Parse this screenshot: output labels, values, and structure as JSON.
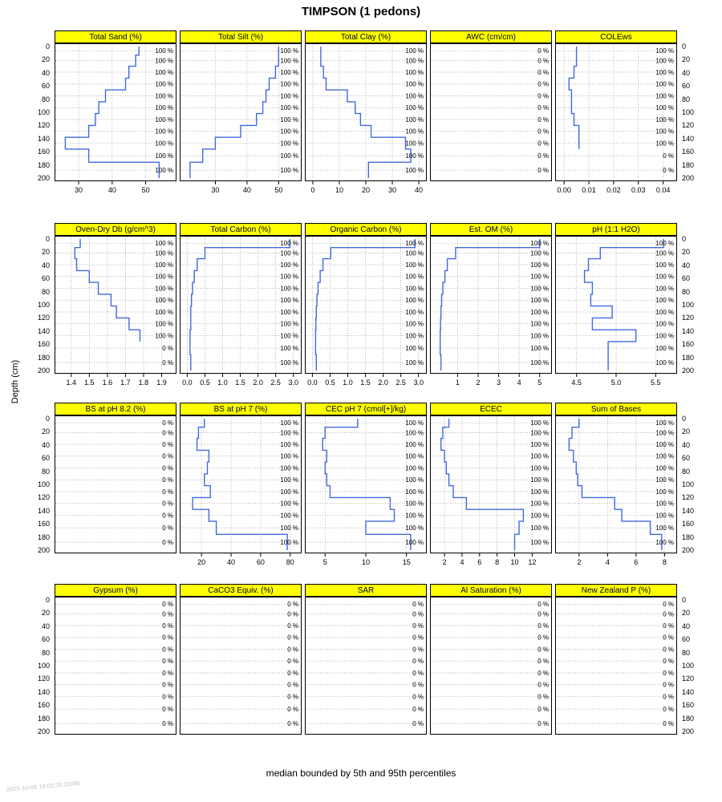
{
  "title": "TIMPSON (1 pedons)",
  "ylabel": "Depth (cm)",
  "caption": "median bounded by 5th and 95th percentiles",
  "watermark": "2025-10-08 18:02:35.03096",
  "colors": {
    "strip_bg": "#FFFF00",
    "line": "#4169E1",
    "grid": "#999999",
    "border": "#000000",
    "watermark": "#c4c4c4"
  },
  "chart_data": {
    "type": "line",
    "style": "depth-profile-step-median",
    "legend": "none",
    "grid": "dotted",
    "depth_axis": {
      "label": "Depth (cm)",
      "ticks": [
        0,
        20,
        40,
        60,
        80,
        100,
        120,
        140,
        160,
        180,
        200
      ],
      "range": [
        0,
        200
      ]
    },
    "horizon_breaks": [
      0,
      13,
      30,
      48,
      66,
      84,
      102,
      120,
      138,
      156,
      176,
      200
    ],
    "availability_suffix": " %",
    "rows": [
      {
        "panels": [
          {
            "title": "Total Sand (%)",
            "xlim": [
              24,
              58
            ],
            "xticks": [
              30,
              40,
              50
            ],
            "xtick_labels": [
              "30",
              "40",
              "50"
            ],
            "median": [
              48,
              47,
              45,
              44,
              38,
              36,
              35,
              33,
              26,
              33,
              54
            ],
            "availability": [
              100,
              100,
              100,
              100,
              100,
              100,
              100,
              100,
              100,
              100,
              100
            ]
          },
          {
            "title": "Total Silt (%)",
            "xlim": [
              20,
              56
            ],
            "xticks": [
              30,
              40,
              50
            ],
            "xtick_labels": [
              "30",
              "40",
              "50"
            ],
            "median": [
              50,
              50,
              49,
              47,
              46,
              45,
              43,
              38,
              30,
              26,
              22
            ],
            "availability": [
              100,
              100,
              100,
              100,
              100,
              100,
              100,
              100,
              100,
              100,
              100
            ]
          },
          {
            "title": "Total Clay (%)",
            "xlim": [
              -1.5,
              41.5
            ],
            "xticks": [
              0,
              10,
              20,
              30,
              40
            ],
            "xtick_labels": [
              "0",
              "10",
              "20",
              "30",
              "40"
            ],
            "median": [
              3,
              3,
              4,
              5,
              13,
              16,
              18,
              22,
              35,
              37,
              21
            ],
            "availability": [
              100,
              100,
              100,
              100,
              100,
              100,
              100,
              100,
              100,
              100,
              100
            ]
          },
          {
            "title": "AWC (cm/cm)",
            "xlim": [
              0,
              1
            ],
            "xticks": [],
            "xtick_labels": [],
            "median": [
              null,
              null,
              null,
              null,
              null,
              null,
              null,
              null,
              null,
              null,
              null
            ],
            "availability": [
              0,
              0,
              0,
              0,
              0,
              0,
              0,
              0,
              0,
              0,
              0
            ]
          },
          {
            "title": "COLEws",
            "xlim": [
              -0.002,
              0.044
            ],
            "xticks": [
              0,
              0.01,
              0.02,
              0.03,
              0.04
            ],
            "xtick_labels": [
              "0.00",
              "0.01",
              "0.02",
              "0.03",
              "0.04"
            ],
            "median": [
              0.005,
              0.005,
              0.004,
              0.002,
              0.003,
              0.003,
              0.004,
              0.006,
              0.006,
              null,
              null
            ],
            "availability": [
              100,
              100,
              100,
              100,
              100,
              100,
              100,
              100,
              100,
              0,
              0
            ]
          }
        ]
      },
      {
        "panels": [
          {
            "title": "Oven-Dry Db (g/cm^3)",
            "xlim": [
              1.33,
              1.96
            ],
            "xticks": [
              1.4,
              1.5,
              1.6,
              1.7,
              1.8,
              1.9
            ],
            "xtick_labels": [
              "1.4",
              "1.5",
              "1.6",
              "1.7",
              "1.8",
              "1.9"
            ],
            "median": [
              1.45,
              1.42,
              1.43,
              1.5,
              1.55,
              1.62,
              1.65,
              1.72,
              1.78,
              null,
              null
            ],
            "availability": [
              100,
              100,
              100,
              100,
              100,
              100,
              100,
              100,
              100,
              0,
              0
            ]
          },
          {
            "title": "Total Carbon (%)",
            "xlim": [
              -0.1,
              3.12
            ],
            "xticks": [
              0,
              0.5,
              1,
              1.5,
              2,
              2.5,
              3
            ],
            "xtick_labels": [
              "0.0",
              "0.5",
              "1.0",
              "1.5",
              "2.0",
              "2.5",
              "3.0"
            ],
            "median": [
              2.9,
              0.5,
              0.28,
              0.2,
              0.15,
              0.12,
              0.1,
              0.1,
              0.08,
              0.08,
              0.1
            ],
            "availability": [
              100,
              100,
              100,
              100,
              100,
              100,
              100,
              100,
              100,
              100,
              100
            ]
          },
          {
            "title": "Organic Carbon (%)",
            "xlim": [
              -0.1,
              3.12
            ],
            "xticks": [
              0,
              0.5,
              1,
              1.5,
              2,
              2.5,
              3
            ],
            "xtick_labels": [
              "0.0",
              "0.5",
              "1.0",
              "1.5",
              "2.0",
              "2.5",
              "3.0"
            ],
            "median": [
              2.9,
              0.52,
              0.3,
              0.22,
              0.16,
              0.13,
              0.11,
              0.1,
              0.09,
              0.09,
              0.11
            ],
            "availability": [
              100,
              100,
              100,
              100,
              100,
              100,
              100,
              100,
              100,
              100,
              100
            ]
          },
          {
            "title": "Est. OM (%)",
            "xlim": [
              -0.15,
              5.4
            ],
            "xticks": [
              1,
              2,
              3,
              4,
              5
            ],
            "xtick_labels": [
              "1",
              "2",
              "3",
              "4",
              "5"
            ],
            "median": [
              5,
              0.9,
              0.5,
              0.38,
              0.28,
              0.22,
              0.19,
              0.17,
              0.15,
              0.15,
              0.19
            ],
            "availability": [
              100,
              100,
              100,
              100,
              100,
              100,
              100,
              100,
              100,
              100,
              100
            ]
          },
          {
            "title": "pH (1:1 H2O)",
            "xlim": [
              4.28,
              5.72
            ],
            "xticks": [
              4.5,
              5.0,
              5.5
            ],
            "xtick_labels": [
              "4.5",
              "5.0",
              "5.5"
            ],
            "median": [
              5.6,
              4.8,
              4.65,
              4.6,
              4.7,
              4.68,
              4.95,
              4.7,
              5.25,
              4.9,
              4.9
            ],
            "availability": [
              100,
              100,
              100,
              100,
              100,
              100,
              100,
              100,
              100,
              100,
              100
            ]
          }
        ]
      },
      {
        "panels": [
          {
            "title": "BS at pH 8.2 (%)",
            "xlim": [
              0,
              1
            ],
            "xticks": [],
            "xtick_labels": [],
            "median": [
              null,
              null,
              null,
              null,
              null,
              null,
              null,
              null,
              null,
              null,
              null
            ],
            "availability": [
              0,
              0,
              0,
              0,
              0,
              0,
              0,
              0,
              0,
              0,
              0
            ]
          },
          {
            "title": "BS at pH 7 (%)",
            "xlim": [
              8,
              85
            ],
            "xticks": [
              20,
              40,
              60,
              80
            ],
            "xtick_labels": [
              "20",
              "40",
              "60",
              "80"
            ],
            "median": [
              22,
              18,
              17,
              25,
              24,
              22,
              26,
              14,
              25,
              30,
              78
            ],
            "availability": [
              100,
              100,
              100,
              100,
              100,
              100,
              100,
              100,
              100,
              100,
              100
            ]
          },
          {
            "title": "CEC pH 7 (cmol[+]/kg)",
            "xlim": [
              3,
              17
            ],
            "xticks": [
              5,
              10,
              15
            ],
            "xtick_labels": [
              "5",
              "10",
              "15"
            ],
            "median": [
              9,
              5,
              4.7,
              5.2,
              5,
              5.2,
              5.6,
              13,
              13.5,
              10,
              15.5
            ],
            "availability": [
              100,
              100,
              100,
              100,
              100,
              100,
              100,
              100,
              100,
              100,
              100
            ]
          },
          {
            "title": "ECEC",
            "xlim": [
              0.8,
              13.8
            ],
            "xticks": [
              2,
              4,
              6,
              8,
              10,
              12
            ],
            "xtick_labels": [
              "2",
              "4",
              "6",
              "8",
              "10",
              "12"
            ],
            "median": [
              2.5,
              1.8,
              1.6,
              2,
              2.2,
              2.5,
              3,
              4.5,
              11,
              10.5,
              10
            ],
            "availability": [
              100,
              100,
              100,
              100,
              100,
              100,
              100,
              100,
              100,
              100,
              100
            ]
          },
          {
            "title": "Sum of Bases",
            "xlim": [
              0.6,
              8.6
            ],
            "xticks": [
              2,
              4,
              6,
              8
            ],
            "xtick_labels": [
              "2",
              "4",
              "6",
              "8"
            ],
            "median": [
              2,
              1.5,
              1.3,
              1.6,
              1.8,
              1.9,
              2.2,
              4.5,
              5,
              7,
              7.8
            ],
            "availability": [
              100,
              100,
              100,
              100,
              100,
              100,
              100,
              100,
              100,
              100,
              100
            ]
          }
        ]
      },
      {
        "panels": [
          {
            "title": "Gypsum (%)",
            "xlim": [
              0,
              1
            ],
            "xticks": [],
            "xtick_labels": [],
            "median": [
              null,
              null,
              null,
              null,
              null,
              null,
              null,
              null,
              null,
              null,
              null
            ],
            "availability": [
              0,
              0,
              0,
              0,
              0,
              0,
              0,
              0,
              0,
              0,
              0
            ]
          },
          {
            "title": "CaCO3 Equiv. (%)",
            "xlim": [
              0,
              1
            ],
            "xticks": [],
            "xtick_labels": [],
            "median": [
              null,
              null,
              null,
              null,
              null,
              null,
              null,
              null,
              null,
              null,
              null
            ],
            "availability": [
              0,
              0,
              0,
              0,
              0,
              0,
              0,
              0,
              0,
              0,
              0
            ]
          },
          {
            "title": "SAR",
            "xlim": [
              0,
              1
            ],
            "xticks": [],
            "xtick_labels": [],
            "median": [
              null,
              null,
              null,
              null,
              null,
              null,
              null,
              null,
              null,
              null,
              null
            ],
            "availability": [
              0,
              0,
              0,
              0,
              0,
              0,
              0,
              0,
              0,
              0,
              0
            ]
          },
          {
            "title": "Al Saturation (%)",
            "xlim": [
              0,
              1
            ],
            "xticks": [],
            "xtick_labels": [],
            "median": [
              null,
              null,
              null,
              null,
              null,
              null,
              null,
              null,
              null,
              null,
              null
            ],
            "availability": [
              0,
              0,
              0,
              0,
              0,
              0,
              0,
              0,
              0,
              0,
              0
            ]
          },
          {
            "title": "New Zealand P (%)",
            "xlim": [
              0,
              1
            ],
            "xticks": [],
            "xtick_labels": [],
            "median": [
              null,
              null,
              null,
              null,
              null,
              null,
              null,
              null,
              null,
              null,
              null
            ],
            "availability": [
              0,
              0,
              0,
              0,
              0,
              0,
              0,
              0,
              0,
              0,
              0
            ]
          }
        ]
      }
    ]
  }
}
